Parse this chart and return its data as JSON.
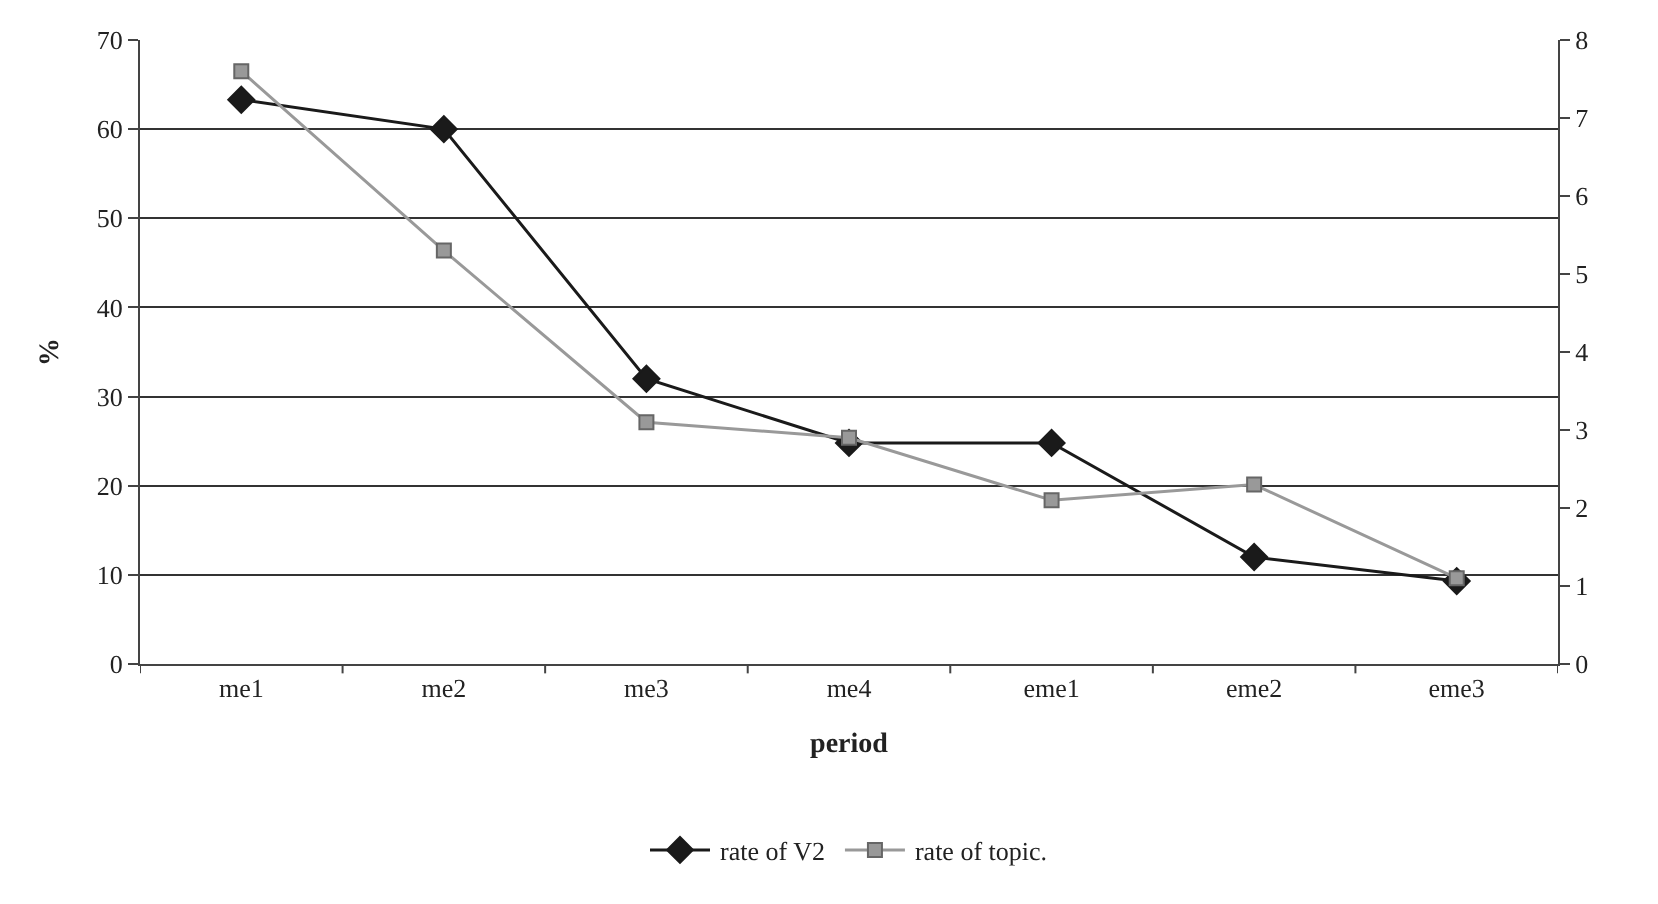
{
  "chart_data": {
    "type": "line",
    "xlabel": "period",
    "ylabel": "%",
    "categories": [
      "me1",
      "me2",
      "me3",
      "me4",
      "eme1",
      "eme2",
      "eme3"
    ],
    "series": [
      {
        "name": "rate of V2",
        "color": "#1a1a1a",
        "marker": "diamond",
        "values": [
          63.3,
          60,
          32,
          24.8,
          24.8,
          12,
          9.3
        ]
      },
      {
        "name": "rate of topic.",
        "color": "#999999",
        "marker": "square",
        "axis": "y2",
        "values": [
          7.6,
          5.3,
          3.1,
          2.9,
          2.1,
          2.3,
          1.1
        ]
      }
    ],
    "ylim": [
      0,
      70
    ],
    "yticks": [
      0,
      10,
      20,
      30,
      40,
      50,
      60,
      70
    ],
    "y2lim": [
      0,
      8
    ],
    "y2ticks": [
      0,
      1,
      2,
      3,
      4,
      5,
      6,
      7,
      8
    ],
    "grid": "y",
    "legend": "bottom"
  }
}
